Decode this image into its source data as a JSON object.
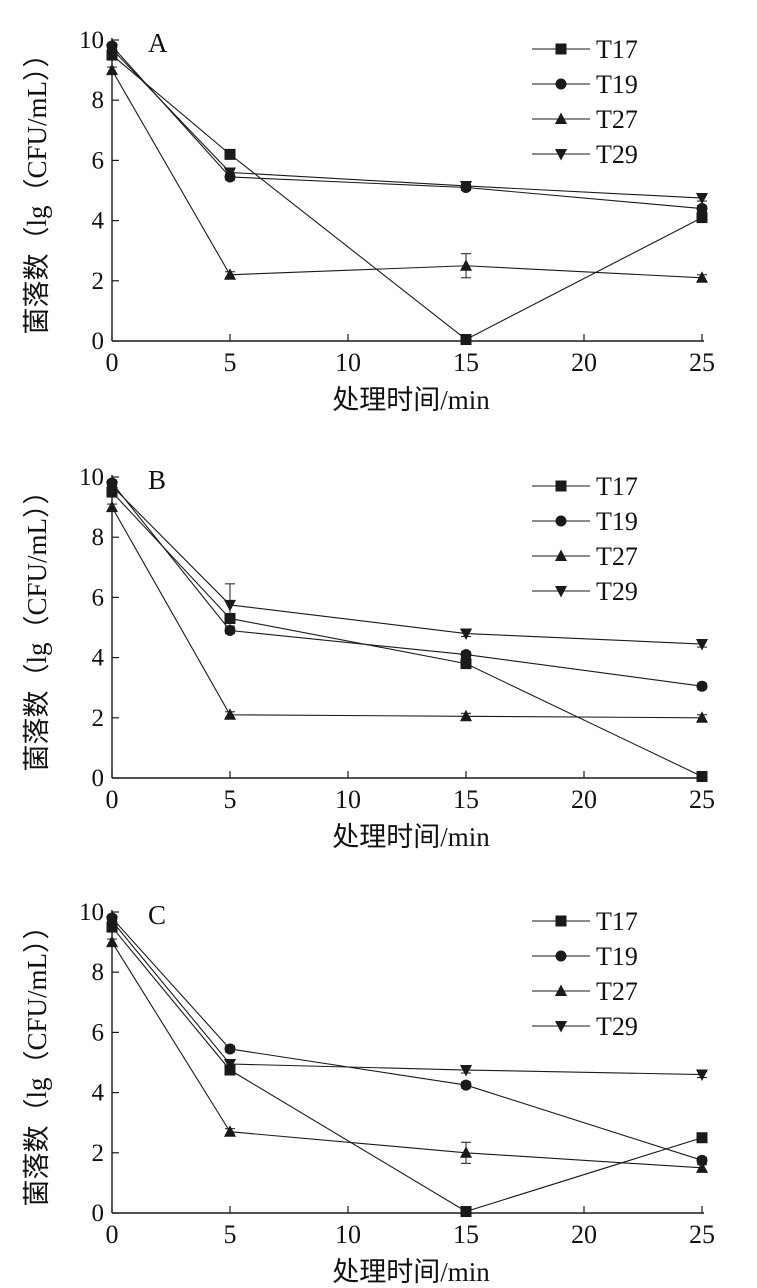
{
  "style": {
    "line_color": "#1a1a1a",
    "background": "#ffffff"
  },
  "chart_data": [
    {
      "type": "line",
      "panel_label": "A",
      "xlabel": "处理时间/min",
      "ylabel": "菌落数（lg（CFU/mL））",
      "xlim": [
        0,
        25
      ],
      "ylim": [
        0,
        10
      ],
      "xticks": [
        0,
        5,
        10,
        15,
        20,
        25
      ],
      "yticks": [
        0,
        2,
        4,
        6,
        8,
        10
      ],
      "x": [
        0,
        5,
        15,
        25
      ],
      "legend_position": "top-right",
      "series": [
        {
          "name": "T17",
          "marker": "square",
          "values": [
            9.5,
            6.2,
            0.05,
            4.1
          ],
          "errors": [
            0.1,
            0.1,
            0.05,
            0.1
          ]
        },
        {
          "name": "T19",
          "marker": "circle",
          "values": [
            9.8,
            5.45,
            5.1,
            4.4
          ],
          "errors": [
            0.1,
            0.1,
            0.1,
            0.1
          ]
        },
        {
          "name": "T27",
          "marker": "triangle-up",
          "values": [
            9.0,
            2.2,
            2.5,
            2.1
          ],
          "errors": [
            0.1,
            0.1,
            0.4,
            0.1
          ]
        },
        {
          "name": "T29",
          "marker": "triangle-down",
          "values": [
            9.7,
            5.6,
            5.15,
            4.75
          ],
          "errors": [
            0.1,
            0.1,
            0.1,
            0.1
          ]
        }
      ]
    },
    {
      "type": "line",
      "panel_label": "B",
      "xlabel": "处理时间/min",
      "ylabel": "菌落数（lg（CFU/mL））",
      "xlim": [
        0,
        25
      ],
      "ylim": [
        0,
        10
      ],
      "xticks": [
        0,
        5,
        10,
        15,
        20,
        25
      ],
      "yticks": [
        0,
        2,
        4,
        6,
        8,
        10
      ],
      "x": [
        0,
        5,
        15,
        25
      ],
      "legend_position": "top-right",
      "series": [
        {
          "name": "T17",
          "marker": "square",
          "values": [
            9.5,
            5.3,
            3.8,
            0.05
          ],
          "errors": [
            0.1,
            0.1,
            0.15,
            0.05
          ]
        },
        {
          "name": "T19",
          "marker": "circle",
          "values": [
            9.8,
            4.9,
            4.1,
            3.05
          ],
          "errors": [
            0.1,
            0.1,
            0.1,
            0.1
          ]
        },
        {
          "name": "T27",
          "marker": "triangle-up",
          "values": [
            9.0,
            2.1,
            2.05,
            2.0
          ],
          "errors": [
            0.1,
            0.1,
            0.1,
            0.1
          ]
        },
        {
          "name": "T29",
          "marker": "triangle-down",
          "values": [
            9.7,
            5.75,
            4.8,
            4.45
          ],
          "errors": [
            0.1,
            0.7,
            0.1,
            0.1
          ]
        }
      ]
    },
    {
      "type": "line",
      "panel_label": "C",
      "xlabel": "处理时间/min",
      "ylabel": "菌落数（lg（CFU/mL））",
      "xlim": [
        0,
        25
      ],
      "ylim": [
        0,
        10
      ],
      "xticks": [
        0,
        5,
        10,
        15,
        20,
        25
      ],
      "yticks": [
        0,
        2,
        4,
        6,
        8,
        10
      ],
      "x": [
        0,
        5,
        15,
        25
      ],
      "legend_position": "top-right",
      "series": [
        {
          "name": "T17",
          "marker": "square",
          "values": [
            9.5,
            4.75,
            0.05,
            2.5
          ],
          "errors": [
            0.1,
            0.1,
            0.05,
            0.1
          ]
        },
        {
          "name": "T19",
          "marker": "circle",
          "values": [
            9.8,
            5.45,
            4.25,
            1.75
          ],
          "errors": [
            0.1,
            0.1,
            0.1,
            0.1
          ]
        },
        {
          "name": "T27",
          "marker": "triangle-up",
          "values": [
            9.0,
            2.7,
            2.0,
            1.5
          ],
          "errors": [
            0.1,
            0.1,
            0.35,
            0.1
          ]
        },
        {
          "name": "T29",
          "marker": "triangle-down",
          "values": [
            9.7,
            4.95,
            4.75,
            4.6
          ],
          "errors": [
            0.1,
            0.1,
            0.1,
            0.1
          ]
        }
      ]
    }
  ]
}
